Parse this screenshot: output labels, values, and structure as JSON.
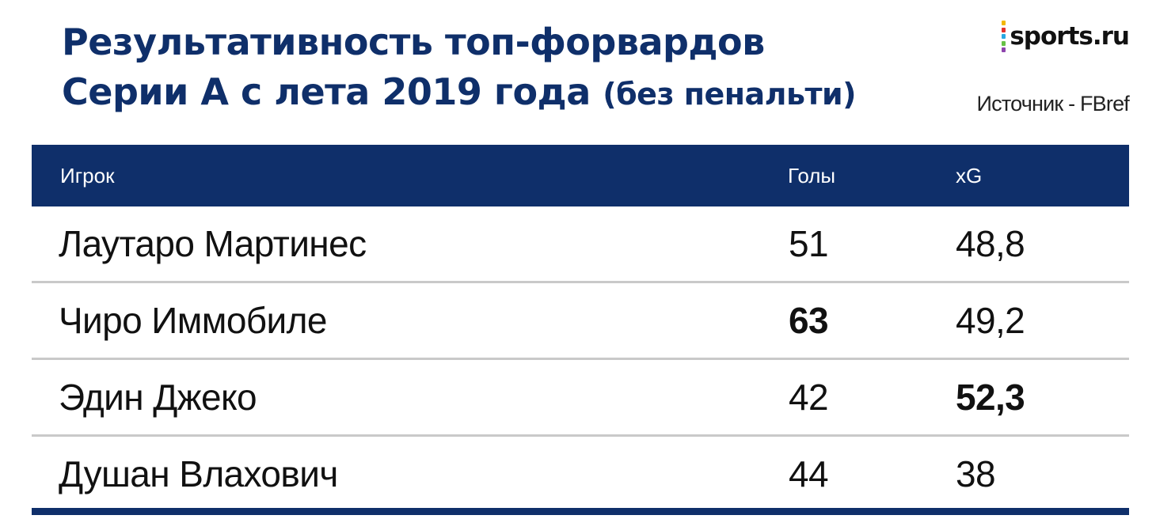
{
  "title_line1": "Результативность топ-форвардов",
  "title_line2_main": "Серии А с лета 2019 года",
  "title_line2_sub": "(без пенальти)",
  "source": "Источник - FBref",
  "logo": {
    "text": "sports.ru",
    "bar_colors": [
      "#f2b700",
      "#e4322b",
      "#2aa8e0",
      "#67c146",
      "#8e44ad"
    ]
  },
  "colors": {
    "brand_navy": "#0f2f6a",
    "row_divider": "#c9c9c9"
  },
  "chart_data": {
    "type": "table",
    "columns": [
      "Игрок",
      "Голы",
      "xG"
    ],
    "rows": [
      {
        "player": "Лаутаро Мартинес",
        "goals": "51",
        "xg": "48,8",
        "bold": null
      },
      {
        "player": "Чиро Иммобиле",
        "goals": "63",
        "xg": "49,2",
        "bold": "goals"
      },
      {
        "player": "Эдин Джеко",
        "goals": "42",
        "xg": "52,3",
        "bold": "xg"
      },
      {
        "player": "Душан Влахович",
        "goals": "44",
        "xg": "38",
        "bold": null
      }
    ]
  }
}
